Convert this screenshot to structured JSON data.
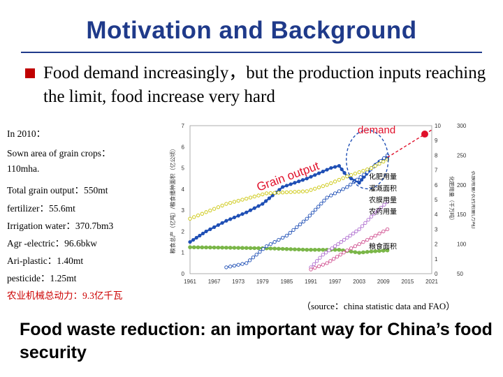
{
  "header": {
    "title": "Motivation and Background"
  },
  "bullet": {
    "text": "Food demand increasingly，but the production inputs reaching the limit, food increase very hard"
  },
  "stats": [
    {
      "text": "In 2010：",
      "red": false
    },
    {
      "text": "Sown area of grain crops：",
      "red": false
    },
    {
      "text": "110mha.",
      "red": false
    },
    {
      "text": "Total grain output：550mt",
      "red": false
    },
    {
      "text": "fertilizer：55.6mt",
      "red": false
    },
    {
      "text": "Irrigation water：370.7bm3",
      "red": false
    },
    {
      "text": "Agr -electric：96.6bkw",
      "red": false
    },
    {
      "text": "Ari-plastic：1.40mt",
      "red": false
    },
    {
      "text": "pesticide：1.25mt",
      "red": false
    },
    {
      "text": "农业机械总动力：9.3亿千瓦",
      "red": true
    }
  ],
  "annotations": {
    "demand": "demand",
    "grain_output": "Grain output"
  },
  "chart_data": {
    "type": "line",
    "x_ticks": [
      "1961",
      "1967",
      "1973",
      "1979",
      "1985",
      "1991",
      "1997",
      "2003",
      "2009",
      "2015",
      "2021"
    ],
    "left_axis": {
      "label": "粮食总产（亿吨）/粮食播种面积（亿公顷）",
      "ticks": [
        "0",
        "1",
        "2",
        "3",
        "4",
        "5",
        "6",
        "7"
      ],
      "ylim": [
        0,
        7
      ]
    },
    "right_axis_1": {
      "label": "化肥用量（千万吨）",
      "ticks": [
        "0",
        "1",
        "2",
        "3",
        "4",
        "5",
        "6",
        "7",
        "8",
        "9",
        "10"
      ],
      "ylim": [
        0,
        10
      ]
    },
    "right_axis_2": {
      "label": "农膜用量/农药用量(万吨)",
      "ticks": [
        "50",
        "100",
        "150",
        "200",
        "250",
        "300"
      ],
      "ylim": [
        50,
        300
      ]
    },
    "legend": [
      "化肥用量",
      "灌溉面积",
      "农膜用量",
      "农药用量",
      "粮食面积"
    ],
    "series": [
      {
        "name": "粮食总产",
        "color": "#1f4fb5",
        "x": [
          1961,
          1965,
          1970,
          1975,
          1979,
          1984,
          1990,
          1996,
          1998,
          2000,
          2003,
          2006,
          2008,
          2010
        ],
        "y": [
          1.5,
          2.0,
          2.5,
          2.9,
          3.3,
          4.1,
          4.5,
          5.0,
          5.1,
          4.6,
          4.3,
          5.0,
          5.3,
          5.5
        ]
      },
      {
        "name": "粮食面积",
        "color": "#7ab648",
        "x": [
          1961,
          1970,
          1980,
          1990,
          1998,
          2003,
          2006,
          2010
        ],
        "y": [
          1.25,
          1.23,
          1.2,
          1.13,
          1.13,
          0.99,
          1.05,
          1.1
        ]
      },
      {
        "name": "化肥用量",
        "color": "#1f4fb5",
        "x": [
          1970,
          1975,
          1980,
          1985,
          1990,
          1995,
          2000,
          2005,
          2010
        ],
        "y": [
          0.3,
          0.5,
          1.3,
          1.8,
          2.6,
          3.6,
          4.1,
          4.8,
          5.6
        ]
      },
      {
        "name": "灌溉面积",
        "color": "#c9c400",
        "x": [
          1961,
          1970,
          1980,
          1990,
          1995,
          2000,
          2003,
          2006,
          2010
        ],
        "y": [
          2.6,
          3.3,
          3.8,
          3.9,
          4.2,
          4.6,
          4.8,
          5.0,
          5.4
        ]
      },
      {
        "name": "农膜用量",
        "color": "#b070d0",
        "x": [
          1991,
          1994,
          1997,
          2000,
          2003,
          2006,
          2010
        ],
        "y": [
          0.3,
          0.9,
          1.3,
          1.7,
          2.1,
          2.7,
          3.4
        ]
      },
      {
        "name": "农药用量",
        "color": "#d05090",
        "x": [
          1991,
          1995,
          2000,
          2005,
          2010
        ],
        "y": [
          0.2,
          0.5,
          1.1,
          1.6,
          2.1
        ]
      },
      {
        "name": "粮食需求",
        "color": "#e0102a",
        "x": [
          2010,
          2021
        ],
        "y": [
          5.5,
          6.8
        ]
      }
    ]
  },
  "source": {
    "text": "（source：china statistic data and FAO）"
  },
  "conclusion": {
    "text": "Food waste reduction: an important way for China’s food security"
  }
}
